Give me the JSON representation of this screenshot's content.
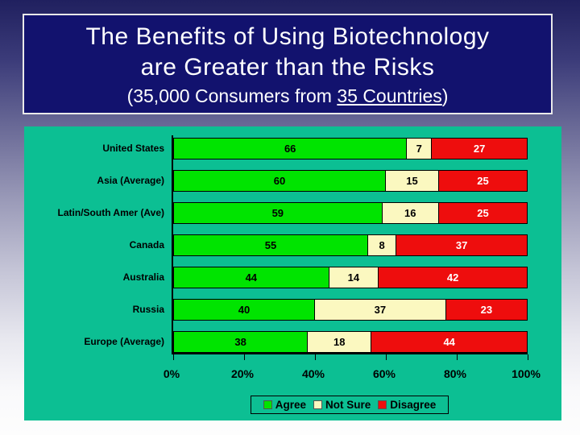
{
  "slide": {
    "title": {
      "line1": "The Benefits of Using Biotechnology",
      "line2": "are Greater than the Risks",
      "subtitle_prefix": "(35,000 Consumers from ",
      "subtitle_underlined": "35 Countries",
      "subtitle_suffix": ")"
    },
    "colors": {
      "title_box_bg": "#12126E",
      "title_text": "#FFFFFF",
      "chart_bg": "#0CBF93",
      "bg_gradient_top": "#20205F",
      "bg_gradient_bottom": "#FDFDFD"
    }
  },
  "chart_data": {
    "type": "bar",
    "orientation": "horizontal_stacked",
    "title": "",
    "xlabel": "",
    "ylabel": "",
    "categories": [
      "United States",
      "Asia (Average)",
      "Latin/South Amer (Ave)",
      "Canada",
      "Australia",
      "Russia",
      "Europe (Average)"
    ],
    "series": [
      {
        "name": "Agree",
        "color": "#00E400",
        "text_color": "#000000",
        "values": [
          66,
          60,
          59,
          55,
          44,
          40,
          38
        ]
      },
      {
        "name": "Not Sure",
        "color": "#FBF8C0",
        "text_color": "#000000",
        "values": [
          7,
          15,
          16,
          8,
          14,
          37,
          18
        ]
      },
      {
        "name": "Disagree",
        "color": "#EE0D0D",
        "text_color": "#FFFFFF",
        "values": [
          27,
          25,
          25,
          37,
          42,
          23,
          44
        ]
      }
    ],
    "x_ticks": [
      "0%",
      "20%",
      "40%",
      "60%",
      "80%",
      "100%"
    ],
    "xlim": [
      0,
      100
    ],
    "grid": false,
    "legend_position": "bottom",
    "data_labels": "inside"
  }
}
